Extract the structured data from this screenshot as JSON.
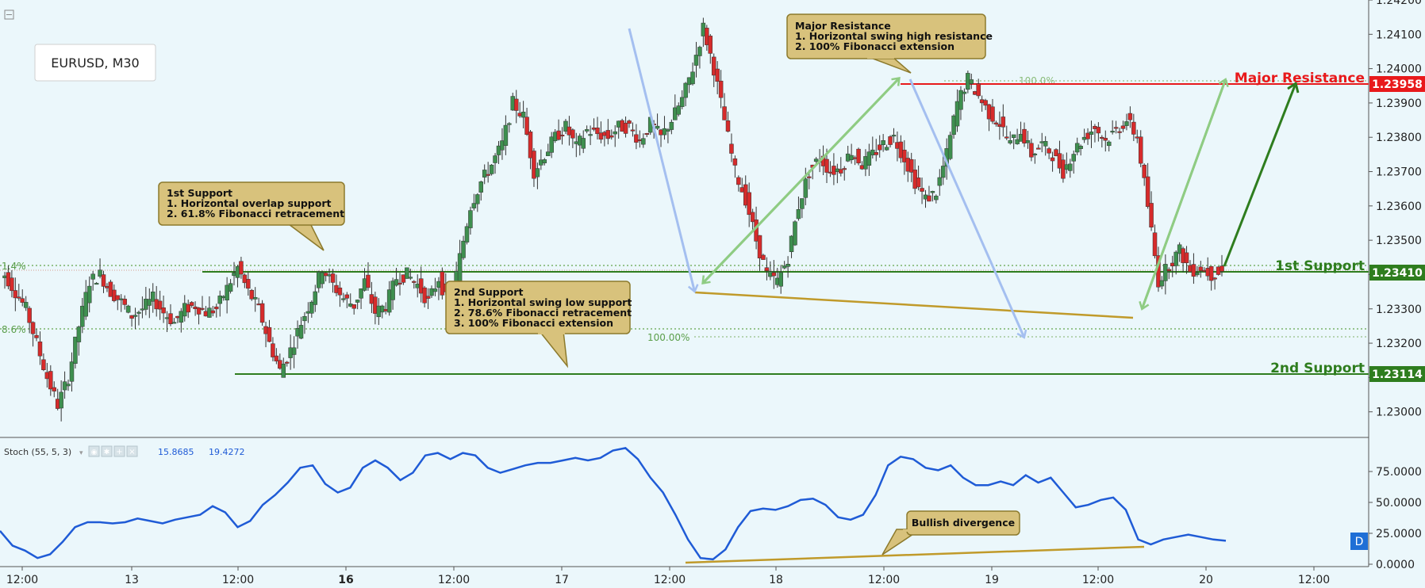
{
  "chart_data": {
    "type": "candlestick",
    "symbol": "EURUSD, M30",
    "price_axis": {
      "ticks": [
        "1.24200",
        "1.24100",
        "1.24000",
        "1.23900",
        "1.23800",
        "1.23700",
        "1.23600",
        "1.23500",
        "1.23400",
        "1.23300",
        "1.23200",
        "1.23100",
        "1.23000"
      ],
      "ylim": [
        1.2293,
        1.242
      ]
    },
    "time_axis": {
      "labels": [
        "12:00",
        "13",
        "12:00",
        "16",
        "12:00",
        "17",
        "12:00",
        "18",
        "12:00",
        "19",
        "12:00",
        "20",
        "12:00"
      ],
      "bold_labels": [
        "16"
      ]
    },
    "price_series": [
      1.234,
      1.2335,
      1.233,
      1.232,
      1.231,
      1.2302,
      1.231,
      1.2325,
      1.2338,
      1.234,
      1.2335,
      1.2332,
      1.2328,
      1.233,
      1.2333,
      1.2329,
      1.2326,
      1.233,
      1.2331,
      1.2329,
      1.233,
      1.2336,
      1.2342,
      1.2335,
      1.233,
      1.232,
      1.2312,
      1.2318,
      1.2326,
      1.2333,
      1.2342,
      1.2337,
      1.2333,
      1.2331,
      1.2338,
      1.2329,
      1.2331,
      1.2339,
      1.234,
      1.2337,
      1.2332,
      1.2339,
      1.233,
      1.2345,
      1.236,
      1.2367,
      1.2372,
      1.2378,
      1.239,
      1.2386,
      1.237,
      1.2375,
      1.238,
      1.2383,
      1.2377,
      1.2382,
      1.2381,
      1.238,
      1.2383,
      1.2383,
      1.2379,
      1.2384,
      1.238,
      1.2385,
      1.2391,
      1.24,
      1.2412,
      1.24,
      1.2385,
      1.237,
      1.2362,
      1.235,
      1.234,
      1.2338,
      1.2345,
      1.236,
      1.237,
      1.2374,
      1.237,
      1.2371,
      1.2376,
      1.2372,
      1.2375,
      1.2378,
      1.238,
      1.2374,
      1.2367,
      1.2362,
      1.2364,
      1.2375,
      1.239,
      1.2397,
      1.2392,
      1.2387,
      1.2384,
      1.2378,
      1.2382,
      1.2375,
      1.2378,
      1.2375,
      1.237,
      1.2376,
      1.238,
      1.2383,
      1.2379,
      1.2382,
      1.2385,
      1.238,
      1.236,
      1.2338,
      1.2343,
      1.2347,
      1.2341,
      1.2342,
      1.234,
      1.2341
    ],
    "stochastic": {
      "label": "Stoch (55, 5, 3)",
      "values": [
        "15.8685",
        "19.4272"
      ],
      "axis_ticks": [
        "75.0000",
        "50.0000",
        "25.0000",
        "0.0000"
      ],
      "ylim": [
        0,
        100
      ],
      "series": [
        27,
        15,
        11,
        5,
        8,
        18,
        30,
        34,
        34,
        33,
        34,
        37,
        35,
        33,
        36,
        38,
        40,
        47,
        42,
        30,
        35,
        48,
        56,
        66,
        78,
        80,
        65,
        58,
        62,
        78,
        84,
        78,
        68,
        74,
        88,
        90,
        85,
        90,
        88,
        78,
        74,
        77,
        80,
        82,
        82,
        84,
        86,
        84,
        86,
        92,
        94,
        85,
        70,
        58,
        40,
        20,
        5,
        4,
        12,
        30,
        43,
        45,
        44,
        47,
        52,
        53,
        48,
        38,
        36,
        40,
        56,
        80,
        87,
        85,
        78,
        76,
        80,
        70,
        64,
        64,
        67,
        64,
        72,
        66,
        70,
        58,
        46,
        48,
        52,
        54,
        44,
        20,
        16,
        20,
        22,
        24,
        22,
        20,
        19
      ]
    },
    "levels": [
      {
        "label": "Major Resistance",
        "value": "1.23958",
        "color": "#e8191b"
      },
      {
        "label": "1st Support",
        "value": "1.23410",
        "color": "#2e7d1e"
      },
      {
        "label": "2nd Support",
        "value": "1.23114",
        "color": "#2e7d1e"
      }
    ],
    "fib_labels": [
      "1.4%",
      "8.6%",
      "100.00%",
      "100.0%"
    ],
    "callouts": [
      {
        "title": "1st Support",
        "lines": [
          "1. Horizontal overlap support",
          "2. 61.8% Fibonacci retracement"
        ]
      },
      {
        "title": "2nd Support",
        "lines": [
          "1. Horizontal swing low support",
          "2. 78.6% Fibonacci retracement",
          "3. 100% Fibonacci extension"
        ]
      },
      {
        "title": "Major Resistance",
        "lines": [
          "1. Horizontal swing high resistance",
          "2. 100% Fibonacci extension"
        ]
      },
      {
        "title": "Bullish divergence",
        "lines": []
      }
    ],
    "interval_badge": "D",
    "colors": {
      "up": "#3e8f4f",
      "down": "#d62b2b",
      "stoch": "#1f5bd6",
      "callout": "#d8c27c",
      "level_green": "#2e7d1e",
      "level_red": "#e8191b"
    }
  }
}
